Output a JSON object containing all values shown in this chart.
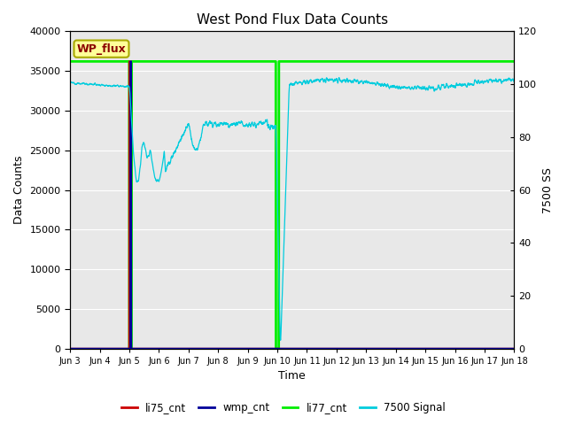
{
  "title": "West Pond Flux Data Counts",
  "xlabel": "Time",
  "ylabel_left": "Data Counts",
  "ylabel_right": "7500 SS",
  "ylim_left": [
    0,
    40000
  ],
  "ylim_right": [
    0,
    120
  ],
  "yticks_left": [
    0,
    5000,
    10000,
    15000,
    20000,
    25000,
    30000,
    35000,
    40000
  ],
  "yticks_right": [
    0,
    20,
    40,
    60,
    80,
    100,
    120
  ],
  "annotation_text": "WP_flux",
  "annotation_color": "#8B0000",
  "annotation_bg": "#FFFF99",
  "annotation_border": "#AAAA00",
  "bg_color": "#E8E8E8",
  "li75_color": "#CC0000",
  "wmp_color": "#000099",
  "li77_color": "#00EE00",
  "signal7500_color": "#00CCDD",
  "legend_labels": [
    "li75_cnt",
    "wmp_cnt",
    "li77_cnt",
    "7500 Signal"
  ],
  "xtick_labels": [
    "Jun 3",
    "Jun 4",
    "Jun 5",
    "Jun 6",
    "Jun 7",
    "Jun 8",
    "Jun 9",
    "Jun 10",
    "Jun 11",
    "Jun 12",
    "Jun 13",
    "Jun 14",
    "Jun 15",
    "Jun 16",
    "Jun 17",
    "Jun 18"
  ],
  "title_fontsize": 11,
  "axis_fontsize": 9
}
